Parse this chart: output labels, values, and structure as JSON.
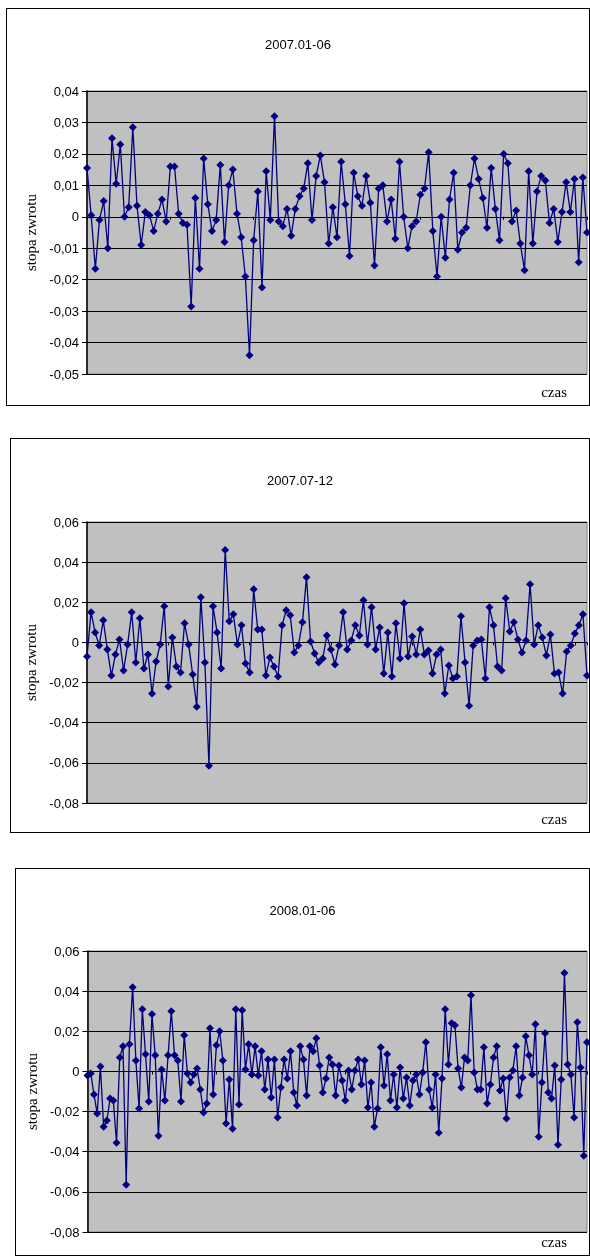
{
  "chart_data": [
    {
      "type": "line",
      "title": "2007.01-06",
      "xlabel": "czas",
      "ylabel": "stopa zwrotu",
      "color": "#000080",
      "marker": "diamond",
      "grid": "y",
      "tick_labels": "y",
      "categories": [
        null,
        null,
        null,
        null,
        null,
        null,
        null,
        null,
        null,
        null,
        null,
        null,
        null,
        null,
        null,
        null,
        null,
        null,
        null,
        null,
        null,
        null,
        null,
        null,
        null,
        null,
        null,
        null,
        null,
        null,
        null,
        null,
        null,
        null,
        null,
        null,
        null,
        null,
        null,
        null,
        null,
        null,
        null,
        null,
        null,
        null,
        null,
        null,
        null,
        null,
        null,
        null,
        null,
        null,
        null,
        null,
        null,
        null,
        null,
        null,
        null,
        null,
        null,
        null,
        null,
        null,
        null,
        null,
        null,
        null,
        null,
        null,
        null,
        null,
        null,
        null,
        null,
        null,
        null,
        null,
        null,
        null,
        null,
        null,
        null,
        null,
        null,
        null,
        null,
        null,
        null,
        null,
        null,
        null,
        null,
        null,
        null,
        null,
        null,
        null,
        null,
        null,
        null,
        null,
        null,
        null,
        null,
        null,
        null,
        null,
        null,
        null,
        null,
        null,
        null,
        null,
        null,
        null,
        null,
        null,
        null
      ],
      "values": [
        0.0155,
        0.0005,
        -0.0165,
        -0.001,
        0.005,
        -0.01,
        0.025,
        0.0105,
        0.023,
        0,
        0.003,
        0.0285,
        0.0035,
        -0.009,
        0.0015,
        0.0005,
        -0.0045,
        0.001,
        0.0055,
        -0.0015,
        0.016,
        0.016,
        0.001,
        -0.002,
        -0.0025,
        -0.0285,
        0.006,
        -0.0165,
        0.0185,
        0.004,
        -0.0045,
        -0.001,
        0.0165,
        -0.008,
        0.01,
        0.015,
        0.001,
        -0.0065,
        -0.019,
        -0.044,
        -0.0075,
        0.008,
        -0.0225,
        0.0145,
        -0.001,
        0.032,
        -0.0015,
        -0.003,
        0.0025,
        -0.006,
        0.0025,
        0.0065,
        0.009,
        0.017,
        -0.001,
        0.013,
        0.0195,
        0.011,
        -0.0085,
        0.003,
        -0.0065,
        0.0175,
        0.004,
        -0.0125,
        0.014,
        0.0065,
        0.0035,
        0.013,
        0.0045,
        -0.0155,
        0.009,
        0.01,
        -0.0015,
        0.0055,
        -0.007,
        0.0175,
        0,
        -0.01,
        -0.003,
        -0.0015,
        0.007,
        0.009,
        0.0205,
        -0.0045,
        -0.019,
        0,
        -0.013,
        0.0055,
        0.014,
        -0.0105,
        -0.005,
        -0.0035,
        0.01,
        0.0185,
        0.012,
        0.006,
        -0.0035,
        0.0155,
        0.0025,
        -0.0075,
        0.02,
        0.017,
        -0.0015,
        0.002,
        -0.0085,
        -0.017,
        0.0145,
        -0.0085,
        0.008,
        0.013,
        0.0115,
        -0.002,
        0.0025,
        -0.008,
        0.0015,
        0.011,
        0.0015,
        0.012,
        -0.0145,
        0.0125,
        -0.005
      ],
      "ylim": [
        -0.05,
        0.04
      ],
      "yticks": [
        {
          "value": -0.05,
          "label": "-0,05"
        },
        {
          "value": -0.04,
          "label": "-0,04"
        },
        {
          "value": -0.03,
          "label": "-0,03"
        },
        {
          "value": -0.02,
          "label": "-0,02"
        },
        {
          "value": -0.01,
          "label": "-0,01"
        },
        {
          "value": 0,
          "label": "0"
        },
        {
          "value": 0.01,
          "label": "0,01"
        },
        {
          "value": 0.02,
          "label": "0,02"
        },
        {
          "value": 0.03,
          "label": "0,03"
        },
        {
          "value": 0.04,
          "label": "0,04"
        }
      ]
    },
    {
      "type": "line",
      "title": "2007.07-12",
      "xlabel": "czas",
      "ylabel": "stopa zwrotu",
      "color": "#000080",
      "marker": "diamond",
      "grid": "y",
      "tick_labels": "y",
      "categories": [
        null,
        null,
        null,
        null,
        null,
        null,
        null,
        null,
        null,
        null,
        null,
        null,
        null,
        null,
        null,
        null,
        null,
        null,
        null,
        null,
        null,
        null,
        null,
        null,
        null,
        null,
        null,
        null,
        null,
        null,
        null,
        null,
        null,
        null,
        null,
        null,
        null,
        null,
        null,
        null,
        null,
        null,
        null,
        null,
        null,
        null,
        null,
        null,
        null,
        null,
        null,
        null,
        null,
        null,
        null,
        null,
        null,
        null,
        null,
        null,
        null,
        null,
        null,
        null,
        null,
        null,
        null,
        null,
        null,
        null,
        null,
        null,
        null,
        null,
        null,
        null,
        null,
        null,
        null,
        null,
        null,
        null,
        null,
        null,
        null,
        null,
        null,
        null,
        null,
        null,
        null,
        null,
        null,
        null,
        null,
        null,
        null,
        null,
        null,
        null,
        null,
        null,
        null,
        null,
        null,
        null,
        null,
        null,
        null,
        null,
        null,
        null,
        null,
        null,
        null,
        null,
        null,
        null,
        null,
        null,
        null,
        null,
        null,
        null
      ],
      "values": [
        -0.007,
        0.015,
        0.005,
        -0.0015,
        0.011,
        -0.0035,
        -0.0165,
        -0.006,
        0.0015,
        -0.014,
        -0.001,
        0.015,
        -0.01,
        0.012,
        -0.013,
        -0.006,
        -0.0255,
        -0.0095,
        -0.001,
        0.018,
        -0.022,
        0.0025,
        -0.012,
        -0.015,
        0.0095,
        -0.001,
        -0.016,
        -0.032,
        0.0225,
        -0.01,
        -0.0615,
        0.018,
        0.005,
        -0.013,
        0.046,
        0.0105,
        0.014,
        -0.001,
        0.0085,
        -0.0105,
        -0.015,
        0.0265,
        0.0065,
        0.0065,
        -0.0165,
        -0.0075,
        -0.012,
        -0.017,
        0.0085,
        0.016,
        0.0135,
        -0.005,
        -0.0015,
        0.01,
        0.0325,
        0.0005,
        -0.0055,
        -0.01,
        -0.008,
        0.0035,
        -0.0035,
        -0.011,
        -0.0015,
        0.015,
        -0.0035,
        0.001,
        0.0085,
        0.0035,
        0.021,
        -0.001,
        0.0175,
        -0.0035,
        0.0075,
        -0.0155,
        0.005,
        -0.017,
        0.0095,
        -0.008,
        0.0195,
        -0.007,
        0.003,
        -0.006,
        0.0065,
        -0.006,
        -0.004,
        -0.0155,
        -0.006,
        -0.0035,
        -0.0255,
        -0.0115,
        -0.018,
        -0.017,
        0.013,
        -0.01,
        -0.0315,
        -0.0015,
        0.001,
        0.0015,
        -0.018,
        0.0175,
        0.0085,
        -0.012,
        -0.014,
        0.022,
        0.0055,
        0.01,
        0.0015,
        -0.005,
        0.001,
        0.029,
        -0.001,
        0.0085,
        0.0025,
        -0.0065,
        0.004,
        -0.0155,
        -0.015,
        -0.0255,
        -0.0045,
        -0.0015,
        0.0045,
        0.0085,
        0.014,
        -0.0165
      ],
      "ylim": [
        -0.08,
        0.06
      ],
      "yticks": [
        {
          "value": -0.08,
          "label": "-0,08"
        },
        {
          "value": -0.06,
          "label": "-0,06"
        },
        {
          "value": -0.04,
          "label": "-0,04"
        },
        {
          "value": -0.02,
          "label": "-0,02"
        },
        {
          "value": 0,
          "label": "0"
        },
        {
          "value": 0.02,
          "label": "0,02"
        },
        {
          "value": 0.04,
          "label": "0,04"
        },
        {
          "value": 0.06,
          "label": "0,06"
        }
      ]
    },
    {
      "type": "line",
      "title": "2008.01-06",
      "xlabel": "czas",
      "ylabel": "stopa zwrotu",
      "color": "#000080",
      "marker": "diamond",
      "grid": "y",
      "tick_labels": "y",
      "categories": [
        null,
        null,
        null,
        null,
        null,
        null,
        null,
        null,
        null,
        null,
        null,
        null,
        null,
        null,
        null,
        null,
        null,
        null,
        null,
        null,
        null,
        null,
        null,
        null,
        null,
        null,
        null,
        null,
        null,
        null,
        null,
        null,
        null,
        null,
        null,
        null,
        null,
        null,
        null,
        null,
        null,
        null,
        null,
        null,
        null,
        null,
        null,
        null,
        null,
        null,
        null,
        null,
        null,
        null,
        null,
        null,
        null,
        null,
        null,
        null,
        null,
        null,
        null,
        null,
        null,
        null,
        null,
        null,
        null,
        null,
        null,
        null,
        null,
        null,
        null,
        null,
        null,
        null,
        null,
        null,
        null,
        null,
        null,
        null,
        null,
        null,
        null,
        null,
        null,
        null,
        null,
        null,
        null,
        null,
        null,
        null,
        null,
        null,
        null,
        null,
        null,
        null,
        null,
        null,
        null,
        null,
        null,
        null,
        null,
        null,
        null,
        null,
        null,
        null,
        null,
        null,
        null,
        null,
        null,
        null,
        null,
        null,
        null,
        null,
        null,
        null,
        null,
        null,
        null,
        null,
        null,
        null,
        null,
        null,
        null,
        null,
        null,
        null,
        null,
        null,
        null,
        null,
        null,
        null,
        null,
        null,
        null,
        null,
        null,
        null,
        null,
        null,
        null,
        null,
        null,
        null
      ],
      "values": [
        -0.002,
        -0.001,
        -0.0115,
        -0.021,
        0.0025,
        -0.0275,
        -0.0245,
        -0.0135,
        -0.0145,
        -0.0355,
        0.007,
        0.0125,
        -0.0565,
        0.0135,
        0.042,
        0.0055,
        -0.0185,
        0.031,
        0.0085,
        -0.015,
        0.0285,
        0.008,
        -0.032,
        0.001,
        -0.0145,
        0.008,
        0.03,
        0.008,
        0.0055,
        -0.015,
        0.018,
        -0.001,
        -0.0055,
        -0.0015,
        0.0015,
        -0.009,
        -0.0205,
        -0.016,
        0.0215,
        -0.0115,
        0.013,
        0.02,
        0.0055,
        -0.026,
        -0.004,
        -0.0285,
        0.031,
        -0.0165,
        0.0305,
        0.001,
        0.0135,
        -0.0015,
        0.0125,
        -0.002,
        0.01,
        -0.009,
        0.006,
        -0.013,
        0.006,
        -0.023,
        -0.008,
        0.006,
        -0.0035,
        0.01,
        -0.0105,
        -0.017,
        0.0125,
        0.006,
        -0.012,
        0.0125,
        0.01,
        0.0165,
        0.003,
        -0.0105,
        -0.0035,
        0.007,
        0.0035,
        -0.012,
        0.003,
        -0.0045,
        -0.0145,
        0.0005,
        -0.009,
        0.0005,
        0.006,
        -0.0065,
        0.0055,
        -0.018,
        -0.0055,
        -0.0275,
        -0.0185,
        0.012,
        -0.007,
        0.0085,
        -0.0145,
        -0.0015,
        -0.018,
        0.002,
        -0.0135,
        -0.003,
        -0.017,
        -0.0045,
        -0.0015,
        -0.0115,
        -0.0005,
        0.0145,
        -0.009,
        -0.018,
        -0.0015,
        -0.0305,
        -0.0035,
        0.031,
        0.0035,
        0.024,
        0.023,
        0.0015,
        -0.008,
        0.007,
        0.0055,
        0.038,
        -0.0005,
        -0.009,
        -0.009,
        0.012,
        -0.016,
        -0.0065,
        0.007,
        0.0125,
        -0.0095,
        -0.0035,
        -0.0235,
        -0.003,
        0.0005,
        0.0125,
        -0.012,
        -0.003,
        0.0175,
        0.008,
        -0.0015,
        0.0235,
        -0.0325,
        -0.0055,
        0.019,
        -0.0105,
        -0.0135,
        0.003,
        -0.0365,
        -0.004,
        0.049,
        0.0035,
        -0.0015,
        -0.023,
        0.0245,
        0.002,
        -0.042,
        0.0145
      ],
      "ylim": [
        -0.08,
        0.06
      ],
      "yticks": [
        {
          "value": -0.08,
          "label": "-0,08"
        },
        {
          "value": -0.06,
          "label": "-0,06"
        },
        {
          "value": -0.04,
          "label": "-0,04"
        },
        {
          "value": -0.02,
          "label": "-0,02"
        },
        {
          "value": 0,
          "label": "0"
        },
        {
          "value": 0.02,
          "label": "0,02"
        },
        {
          "value": 0.04,
          "label": "0,04"
        },
        {
          "value": 0.06,
          "label": "0,06"
        }
      ]
    }
  ]
}
